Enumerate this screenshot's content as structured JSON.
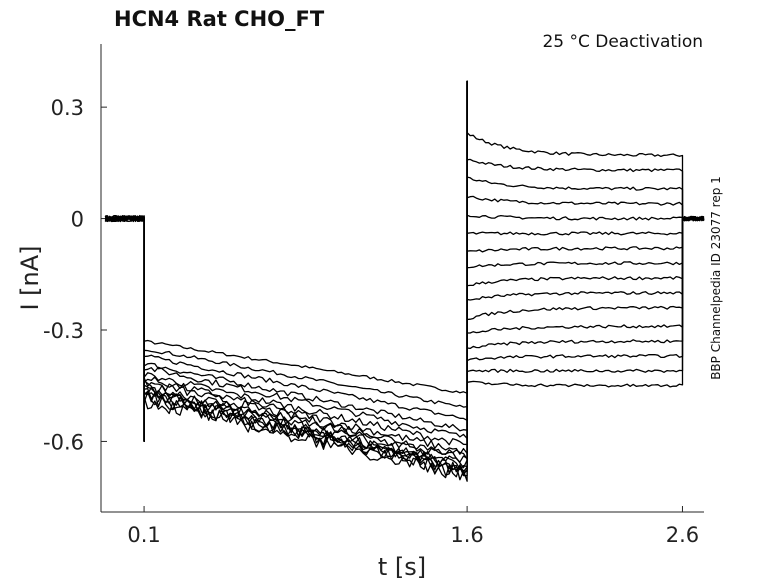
{
  "chart_data": {
    "type": "line",
    "title": "HCN4  Rat  CHO_FT",
    "annotation": "25 °C  Deactivation",
    "side_label": "BBP Channelpedia ID 23077 rep 1",
    "xlabel": "t [s]",
    "ylabel": "I [nA]",
    "x_ticks": [
      0.1,
      1.6,
      2.6
    ],
    "x_tick_labels": [
      "0.1",
      "1.6",
      "2.6"
    ],
    "y_ticks": [
      0.3,
      0,
      -0.3,
      -0.6
    ],
    "y_tick_labels": [
      "0.3",
      "0",
      "-0.3",
      "-0.6"
    ],
    "xlim": [
      -0.1,
      2.7
    ],
    "ylim": [
      -0.79,
      0.47
    ],
    "grid": false,
    "holding_current": 0.0,
    "series": [
      {
        "values": {
          "prepulse_start": -0.33,
          "prepulse_end": -0.47,
          "tail_start": 0.23,
          "tail_end": 0.17
        }
      },
      {
        "values": {
          "prepulse_start": -0.35,
          "prepulse_end": -0.51,
          "tail_start": 0.16,
          "tail_end": 0.13
        }
      },
      {
        "values": {
          "prepulse_start": -0.37,
          "prepulse_end": -0.54,
          "tail_start": 0.11,
          "tail_end": 0.08
        }
      },
      {
        "values": {
          "prepulse_start": -0.39,
          "prepulse_end": -0.57,
          "tail_start": 0.06,
          "tail_end": 0.04
        }
      },
      {
        "values": {
          "prepulse_start": -0.4,
          "prepulse_end": -0.59,
          "tail_start": 0.01,
          "tail_end": 0.0
        }
      },
      {
        "values": {
          "prepulse_start": -0.42,
          "prepulse_end": -0.61,
          "tail_start": -0.04,
          "tail_end": -0.04
        }
      },
      {
        "values": {
          "prepulse_start": -0.43,
          "prepulse_end": -0.63,
          "tail_start": -0.09,
          "tail_end": -0.08
        }
      },
      {
        "values": {
          "prepulse_start": -0.44,
          "prepulse_end": -0.64,
          "tail_start": -0.13,
          "tail_end": -0.12
        }
      },
      {
        "values": {
          "prepulse_start": -0.45,
          "prepulse_end": -0.65,
          "tail_start": -0.18,
          "tail_end": -0.16
        }
      },
      {
        "values": {
          "prepulse_start": -0.46,
          "prepulse_end": -0.66,
          "tail_start": -0.22,
          "tail_end": -0.2
        }
      },
      {
        "values": {
          "prepulse_start": -0.46,
          "prepulse_end": -0.67,
          "tail_start": -0.27,
          "tail_end": -0.24
        }
      },
      {
        "values": {
          "prepulse_start": -0.47,
          "prepulse_end": -0.67,
          "tail_start": -0.31,
          "tail_end": -0.29
        }
      },
      {
        "values": {
          "prepulse_start": -0.47,
          "prepulse_end": -0.68,
          "tail_start": -0.35,
          "tail_end": -0.33
        }
      },
      {
        "values": {
          "prepulse_start": -0.48,
          "prepulse_end": -0.68,
          "tail_start": -0.38,
          "tail_end": -0.37
        }
      },
      {
        "values": {
          "prepulse_start": -0.48,
          "prepulse_end": -0.69,
          "tail_start": -0.41,
          "tail_end": -0.41
        }
      },
      {
        "values": {
          "prepulse_start": -0.49,
          "prepulse_end": -0.69,
          "tail_start": -0.44,
          "tail_end": -0.45
        }
      }
    ]
  }
}
